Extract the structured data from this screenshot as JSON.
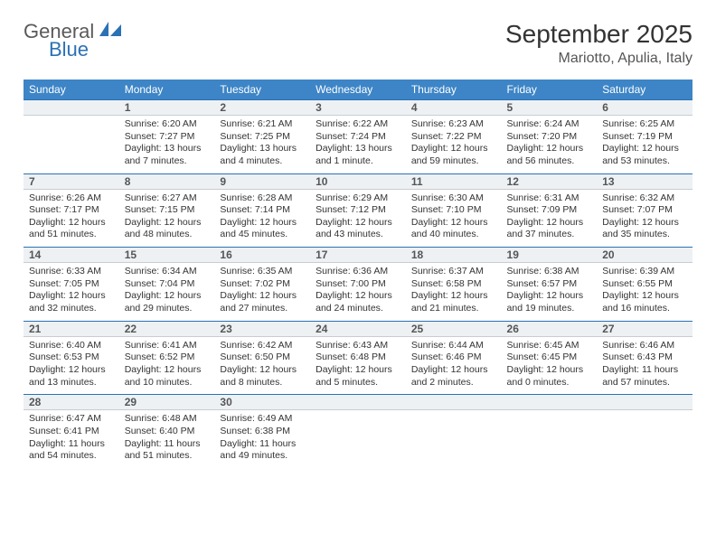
{
  "logo": {
    "word1": "General",
    "word2": "Blue"
  },
  "title": "September 2025",
  "location": "Mariotto, Apulia, Italy",
  "colors": {
    "header_bg": "#3d85c6",
    "rule": "#2a72b5",
    "daystrip_bg": "#eef1f4",
    "logo_gray": "#5a5a5a",
    "logo_blue": "#2a72b5"
  },
  "weekdays": [
    "Sunday",
    "Monday",
    "Tuesday",
    "Wednesday",
    "Thursday",
    "Friday",
    "Saturday"
  ],
  "weeks": [
    [
      {
        "day": "",
        "lines": []
      },
      {
        "day": "1",
        "lines": [
          "Sunrise: 6:20 AM",
          "Sunset: 7:27 PM",
          "Daylight: 13 hours and 7 minutes."
        ]
      },
      {
        "day": "2",
        "lines": [
          "Sunrise: 6:21 AM",
          "Sunset: 7:25 PM",
          "Daylight: 13 hours and 4 minutes."
        ]
      },
      {
        "day": "3",
        "lines": [
          "Sunrise: 6:22 AM",
          "Sunset: 7:24 PM",
          "Daylight: 13 hours and 1 minute."
        ]
      },
      {
        "day": "4",
        "lines": [
          "Sunrise: 6:23 AM",
          "Sunset: 7:22 PM",
          "Daylight: 12 hours and 59 minutes."
        ]
      },
      {
        "day": "5",
        "lines": [
          "Sunrise: 6:24 AM",
          "Sunset: 7:20 PM",
          "Daylight: 12 hours and 56 minutes."
        ]
      },
      {
        "day": "6",
        "lines": [
          "Sunrise: 6:25 AM",
          "Sunset: 7:19 PM",
          "Daylight: 12 hours and 53 minutes."
        ]
      }
    ],
    [
      {
        "day": "7",
        "lines": [
          "Sunrise: 6:26 AM",
          "Sunset: 7:17 PM",
          "Daylight: 12 hours and 51 minutes."
        ]
      },
      {
        "day": "8",
        "lines": [
          "Sunrise: 6:27 AM",
          "Sunset: 7:15 PM",
          "Daylight: 12 hours and 48 minutes."
        ]
      },
      {
        "day": "9",
        "lines": [
          "Sunrise: 6:28 AM",
          "Sunset: 7:14 PM",
          "Daylight: 12 hours and 45 minutes."
        ]
      },
      {
        "day": "10",
        "lines": [
          "Sunrise: 6:29 AM",
          "Sunset: 7:12 PM",
          "Daylight: 12 hours and 43 minutes."
        ]
      },
      {
        "day": "11",
        "lines": [
          "Sunrise: 6:30 AM",
          "Sunset: 7:10 PM",
          "Daylight: 12 hours and 40 minutes."
        ]
      },
      {
        "day": "12",
        "lines": [
          "Sunrise: 6:31 AM",
          "Sunset: 7:09 PM",
          "Daylight: 12 hours and 37 minutes."
        ]
      },
      {
        "day": "13",
        "lines": [
          "Sunrise: 6:32 AM",
          "Sunset: 7:07 PM",
          "Daylight: 12 hours and 35 minutes."
        ]
      }
    ],
    [
      {
        "day": "14",
        "lines": [
          "Sunrise: 6:33 AM",
          "Sunset: 7:05 PM",
          "Daylight: 12 hours and 32 minutes."
        ]
      },
      {
        "day": "15",
        "lines": [
          "Sunrise: 6:34 AM",
          "Sunset: 7:04 PM",
          "Daylight: 12 hours and 29 minutes."
        ]
      },
      {
        "day": "16",
        "lines": [
          "Sunrise: 6:35 AM",
          "Sunset: 7:02 PM",
          "Daylight: 12 hours and 27 minutes."
        ]
      },
      {
        "day": "17",
        "lines": [
          "Sunrise: 6:36 AM",
          "Sunset: 7:00 PM",
          "Daylight: 12 hours and 24 minutes."
        ]
      },
      {
        "day": "18",
        "lines": [
          "Sunrise: 6:37 AM",
          "Sunset: 6:58 PM",
          "Daylight: 12 hours and 21 minutes."
        ]
      },
      {
        "day": "19",
        "lines": [
          "Sunrise: 6:38 AM",
          "Sunset: 6:57 PM",
          "Daylight: 12 hours and 19 minutes."
        ]
      },
      {
        "day": "20",
        "lines": [
          "Sunrise: 6:39 AM",
          "Sunset: 6:55 PM",
          "Daylight: 12 hours and 16 minutes."
        ]
      }
    ],
    [
      {
        "day": "21",
        "lines": [
          "Sunrise: 6:40 AM",
          "Sunset: 6:53 PM",
          "Daylight: 12 hours and 13 minutes."
        ]
      },
      {
        "day": "22",
        "lines": [
          "Sunrise: 6:41 AM",
          "Sunset: 6:52 PM",
          "Daylight: 12 hours and 10 minutes."
        ]
      },
      {
        "day": "23",
        "lines": [
          "Sunrise: 6:42 AM",
          "Sunset: 6:50 PM",
          "Daylight: 12 hours and 8 minutes."
        ]
      },
      {
        "day": "24",
        "lines": [
          "Sunrise: 6:43 AM",
          "Sunset: 6:48 PM",
          "Daylight: 12 hours and 5 minutes."
        ]
      },
      {
        "day": "25",
        "lines": [
          "Sunrise: 6:44 AM",
          "Sunset: 6:46 PM",
          "Daylight: 12 hours and 2 minutes."
        ]
      },
      {
        "day": "26",
        "lines": [
          "Sunrise: 6:45 AM",
          "Sunset: 6:45 PM",
          "Daylight: 12 hours and 0 minutes."
        ]
      },
      {
        "day": "27",
        "lines": [
          "Sunrise: 6:46 AM",
          "Sunset: 6:43 PM",
          "Daylight: 11 hours and 57 minutes."
        ]
      }
    ],
    [
      {
        "day": "28",
        "lines": [
          "Sunrise: 6:47 AM",
          "Sunset: 6:41 PM",
          "Daylight: 11 hours and 54 minutes."
        ]
      },
      {
        "day": "29",
        "lines": [
          "Sunrise: 6:48 AM",
          "Sunset: 6:40 PM",
          "Daylight: 11 hours and 51 minutes."
        ]
      },
      {
        "day": "30",
        "lines": [
          "Sunrise: 6:49 AM",
          "Sunset: 6:38 PM",
          "Daylight: 11 hours and 49 minutes."
        ]
      },
      {
        "day": "",
        "lines": []
      },
      {
        "day": "",
        "lines": []
      },
      {
        "day": "",
        "lines": []
      },
      {
        "day": "",
        "lines": []
      }
    ]
  ]
}
